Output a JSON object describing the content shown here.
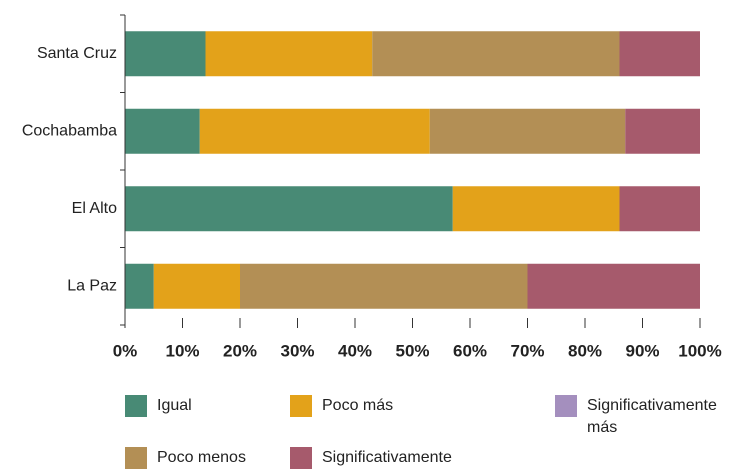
{
  "chart_data": {
    "type": "stacked_bar",
    "orientation": "horizontal",
    "categories": [
      "Santa Cruz",
      "Cochabamba",
      "El Alto",
      "La Paz"
    ],
    "series": [
      {
        "name": "Igual",
        "color": "#488a75",
        "values": [
          14,
          13,
          57,
          5
        ]
      },
      {
        "name": "Poco más",
        "color": "#e3a21a",
        "values": [
          29,
          40,
          29,
          15
        ]
      },
      {
        "name": "Significativamente más",
        "color": "#a48fbe",
        "values": [
          0,
          0,
          0,
          0
        ]
      },
      {
        "name": "Poco menos",
        "color": "#b38f55",
        "values": [
          43,
          34,
          0,
          50
        ]
      },
      {
        "name": "Significativamente menos",
        "color": "#a65a6c",
        "values": [
          14,
          13,
          14,
          30
        ]
      }
    ],
    "xlim": [
      0,
      100
    ],
    "xticks": [
      {
        "value": 0,
        "label": "0%"
      },
      {
        "value": 10,
        "label": "10%"
      },
      {
        "value": 20,
        "label": "20%"
      },
      {
        "value": 30,
        "label": "30%"
      },
      {
        "value": 40,
        "label": "40%"
      },
      {
        "value": 50,
        "label": "50%"
      },
      {
        "value": 60,
        "label": "60%"
      },
      {
        "value": 70,
        "label": "70%"
      },
      {
        "value": 80,
        "label": "80%"
      },
      {
        "value": 90,
        "label": "90%"
      },
      {
        "value": 100,
        "label": "100%"
      }
    ]
  }
}
